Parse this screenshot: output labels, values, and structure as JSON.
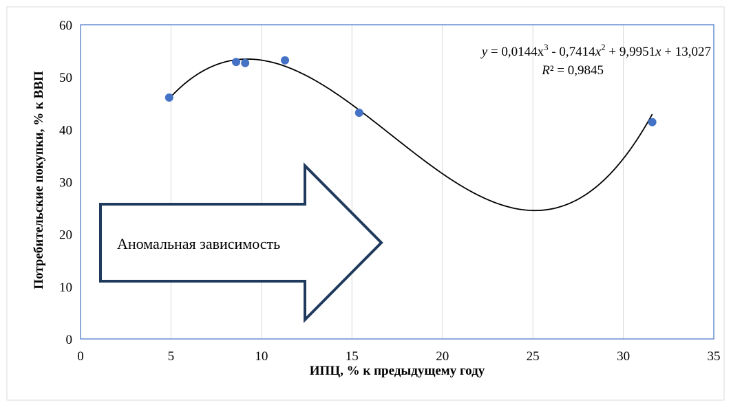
{
  "chart_data": {
    "type": "scatter",
    "xlabel": "ИПЦ, % к предыдущему году",
    "ylabel": "Потребительские покупки, % к ВВП",
    "xlim": [
      0,
      35
    ],
    "ylim": [
      0,
      60
    ],
    "xticks": [
      0,
      5,
      10,
      15,
      20,
      25,
      30,
      35
    ],
    "yticks": [
      0,
      10,
      20,
      30,
      40,
      50,
      60
    ],
    "grid": "vertical",
    "series": [
      {
        "points": [
          {
            "x": 4.9,
            "y": 46.1
          },
          {
            "x": 8.6,
            "y": 52.9
          },
          {
            "x": 9.1,
            "y": 52.7
          },
          {
            "x": 11.3,
            "y": 53.2
          },
          {
            "x": 15.4,
            "y": 43.2
          },
          {
            "x": 31.6,
            "y": 41.4
          }
        ],
        "color": "#4472C4"
      }
    ],
    "trendline": {
      "type": "polynomial",
      "coefficients": [
        0.0144,
        -0.7414,
        9.9951,
        13.027
      ],
      "x_range": [
        4.9,
        31.6
      ],
      "color": "#000000",
      "equation_parts": {
        "y": "y",
        "eq1": " = 0,0144x",
        "sup1": "3",
        "eq2": " - 0,7414",
        "x2": "x",
        "sup2": "2",
        "eq3": " + 9,9951",
        "x3": "x",
        "eq4": " + 13,027"
      },
      "r2_parts": {
        "r": "R",
        "rest": "² = 0,9845"
      }
    },
    "annotation": {
      "text": "Аномальная зависимость",
      "shape": "right-arrow",
      "border_color": "#1F3A5C"
    }
  }
}
